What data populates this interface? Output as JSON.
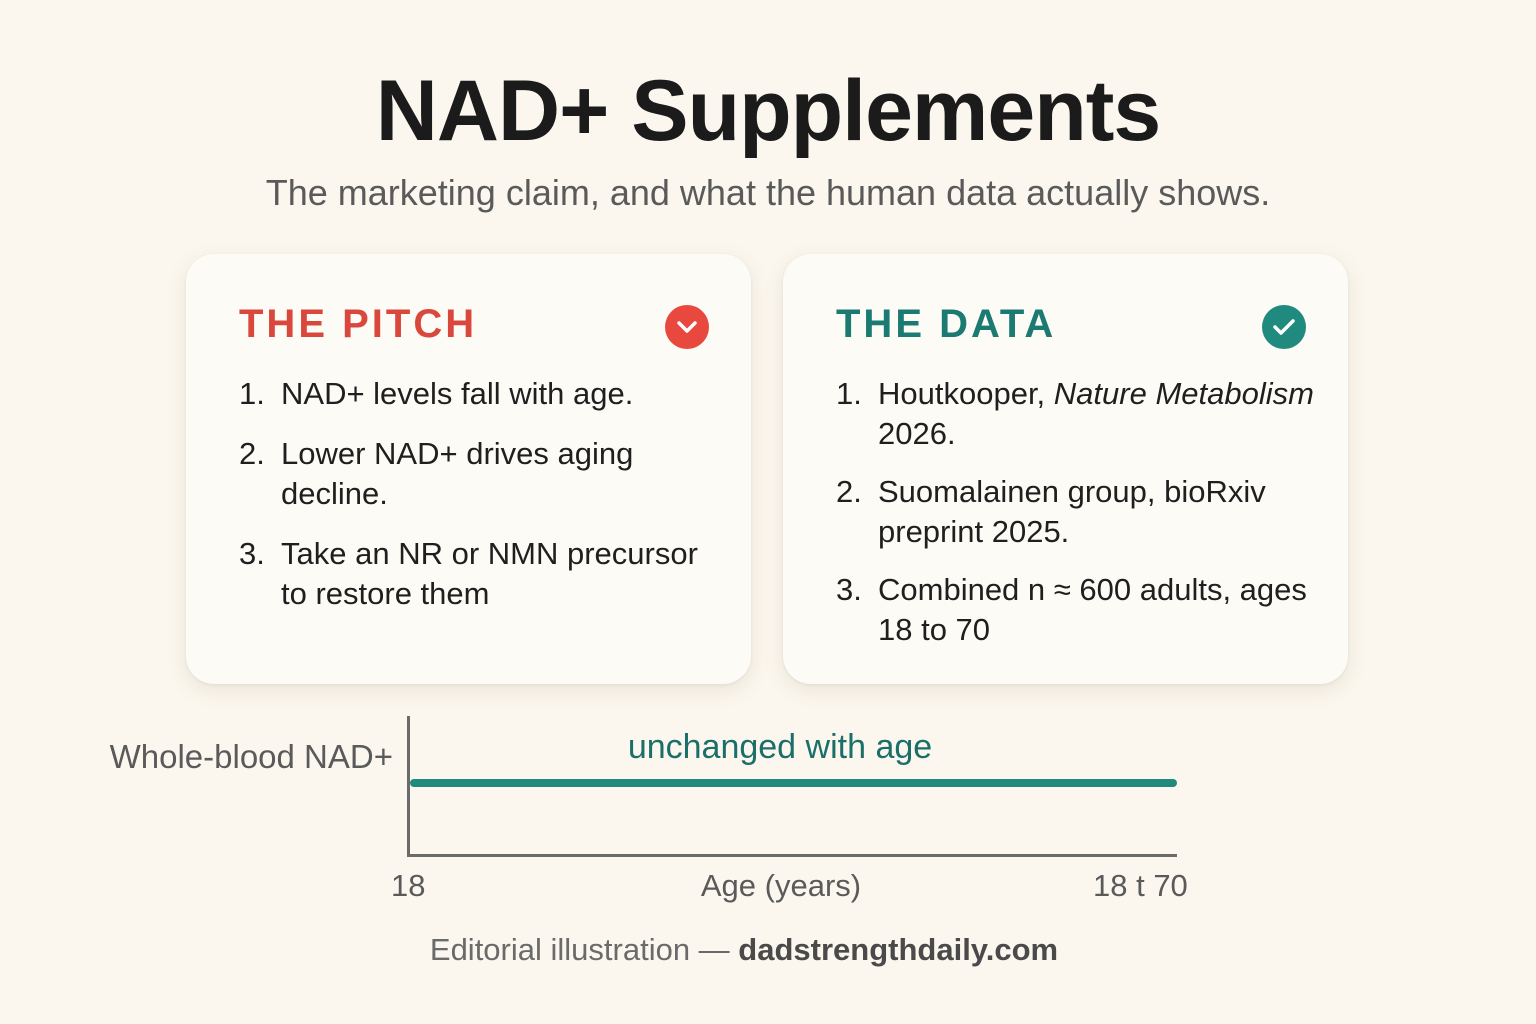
{
  "header": {
    "title": "NAD+ Supplements",
    "subtitle": "The marketing claim, and what the human data actually shows."
  },
  "pitch": {
    "heading": "THE PITCH",
    "badge_icon": "chevron-down-icon",
    "badge_color": "#e8483e",
    "items": [
      {
        "num": "1.",
        "text": "NAD+ levels fall with age."
      },
      {
        "num": "2.",
        "text": "Lower NAD+ drives aging decline."
      },
      {
        "num": "3.",
        "text": "Take an NR or NMN precursor to restore them"
      }
    ]
  },
  "data": {
    "heading": "THE DATA",
    "badge_icon": "check-icon",
    "badge_color": "#1f8a7d",
    "items": [
      {
        "num": "1.",
        "author": "Houtkooper, ",
        "journal": "Nature Metabolism",
        "year": " 2026."
      },
      {
        "num": "2.",
        "text": "Suomalainen group, bioRxiv preprint 2025."
      },
      {
        "num": "3.",
        "text": "Combined n ≈ 600 adults, ages 18 to 70"
      }
    ]
  },
  "chart": {
    "annotation": "unchanged with age",
    "ylabel": "Whole-blood NAD+",
    "xlabel": "Age (years)",
    "tick_start": "18",
    "tick_end": "18 t 70",
    "line_color": "#1f8a7d"
  },
  "chart_data": {
    "type": "line",
    "xlabel": "Age (years)",
    "ylabel": "Whole-blood NAD+",
    "x_ticks": [
      "18",
      "18 t 70"
    ],
    "series": [
      {
        "x": [
          18,
          70
        ],
        "y": [
          1,
          1
        ]
      }
    ],
    "annotations": [
      "unchanged with age"
    ],
    "grid": false
  },
  "footer": {
    "prefix": "Editorial illustration — ",
    "site": "dadstrengthdaily.com"
  }
}
